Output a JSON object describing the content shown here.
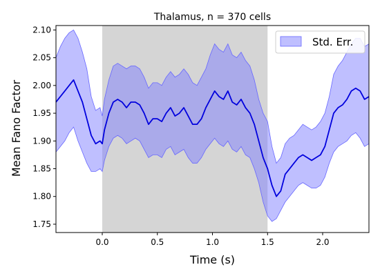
{
  "chart_data": {
    "type": "line",
    "title": "Thalamus, n = 370 cells",
    "xlabel": "Time (s)",
    "ylabel": "Mean Fano Factor",
    "xlim": [
      -0.42,
      2.42
    ],
    "ylim": [
      1.735,
      2.108
    ],
    "xticks": [
      0.0,
      0.5,
      1.0,
      1.5,
      2.0
    ],
    "xtick_labels": [
      "0.0",
      "0.5",
      "1.0",
      "1.5",
      "2.0"
    ],
    "yticks": [
      1.75,
      1.8,
      1.85,
      1.9,
      1.95,
      2.0,
      2.05,
      2.1
    ],
    "ytick_labels": [
      "1.75",
      "1.80",
      "1.85",
      "1.90",
      "1.95",
      "2.00",
      "2.05",
      "2.10"
    ],
    "shaded_interval": [
      0.0,
      1.5
    ],
    "grid": false,
    "legend": {
      "position": "top-right",
      "entries": [
        "Std. Err."
      ]
    },
    "colors": {
      "line": "#0000dd",
      "band": "#8080ff",
      "shade": "#b3b3b3"
    },
    "series": [
      {
        "name": "",
        "x": [
          -0.42,
          -0.38,
          -0.34,
          -0.3,
          -0.26,
          -0.22,
          -0.18,
          -0.14,
          -0.1,
          -0.06,
          -0.02,
          0.0,
          0.02,
          0.06,
          0.1,
          0.14,
          0.18,
          0.22,
          0.26,
          0.3,
          0.34,
          0.38,
          0.42,
          0.46,
          0.5,
          0.54,
          0.58,
          0.62,
          0.66,
          0.7,
          0.74,
          0.78,
          0.82,
          0.86,
          0.9,
          0.94,
          0.98,
          1.02,
          1.06,
          1.1,
          1.14,
          1.18,
          1.22,
          1.26,
          1.3,
          1.34,
          1.38,
          1.42,
          1.46,
          1.5,
          1.54,
          1.58,
          1.62,
          1.66,
          1.7,
          1.74,
          1.78,
          1.82,
          1.86,
          1.9,
          1.94,
          1.98,
          2.02,
          2.06,
          2.1,
          2.14,
          2.18,
          2.22,
          2.26,
          2.3,
          2.34,
          2.38,
          2.42
        ],
        "y": [
          1.97,
          1.98,
          1.99,
          2.0,
          2.01,
          1.99,
          1.97,
          1.94,
          1.91,
          1.895,
          1.9,
          1.895,
          1.92,
          1.95,
          1.97,
          1.975,
          1.97,
          1.96,
          1.97,
          1.97,
          1.965,
          1.95,
          1.93,
          1.94,
          1.94,
          1.935,
          1.95,
          1.96,
          1.945,
          1.95,
          1.96,
          1.945,
          1.93,
          1.93,
          1.94,
          1.96,
          1.975,
          1.99,
          1.98,
          1.975,
          1.99,
          1.97,
          1.965,
          1.975,
          1.96,
          1.95,
          1.93,
          1.9,
          1.87,
          1.85,
          1.82,
          1.8,
          1.81,
          1.84,
          1.85,
          1.86,
          1.87,
          1.875,
          1.87,
          1.865,
          1.87,
          1.875,
          1.89,
          1.92,
          1.95,
          1.96,
          1.965,
          1.975,
          1.99,
          1.995,
          1.99,
          1.975,
          1.98
        ],
        "lower": [
          1.88,
          1.89,
          1.9,
          1.915,
          1.925,
          1.9,
          1.88,
          1.86,
          1.845,
          1.845,
          1.85,
          1.845,
          1.865,
          1.89,
          1.905,
          1.91,
          1.905,
          1.895,
          1.9,
          1.905,
          1.9,
          1.885,
          1.87,
          1.875,
          1.875,
          1.87,
          1.885,
          1.89,
          1.875,
          1.88,
          1.885,
          1.87,
          1.86,
          1.86,
          1.87,
          1.885,
          1.895,
          1.905,
          1.895,
          1.89,
          1.9,
          1.885,
          1.88,
          1.89,
          1.875,
          1.87,
          1.85,
          1.825,
          1.79,
          1.765,
          1.755,
          1.76,
          1.775,
          1.79,
          1.8,
          1.81,
          1.82,
          1.825,
          1.82,
          1.815,
          1.815,
          1.82,
          1.835,
          1.86,
          1.88,
          1.89,
          1.895,
          1.9,
          1.91,
          1.915,
          1.905,
          1.89,
          1.895
        ],
        "upper": [
          2.05,
          2.07,
          2.085,
          2.095,
          2.1,
          2.085,
          2.06,
          2.03,
          1.98,
          1.955,
          1.96,
          1.945,
          1.975,
          2.01,
          2.035,
          2.04,
          2.035,
          2.03,
          2.035,
          2.035,
          2.03,
          2.015,
          1.995,
          2.005,
          2.005,
          2.0,
          2.015,
          2.025,
          2.015,
          2.02,
          2.03,
          2.02,
          2.005,
          2.0,
          2.015,
          2.03,
          2.055,
          2.075,
          2.065,
          2.06,
          2.075,
          2.055,
          2.05,
          2.06,
          2.045,
          2.035,
          2.01,
          1.975,
          1.95,
          1.935,
          1.89,
          1.86,
          1.87,
          1.895,
          1.905,
          1.91,
          1.92,
          1.93,
          1.925,
          1.92,
          1.925,
          1.935,
          1.95,
          1.98,
          2.02,
          2.035,
          2.045,
          2.06,
          2.075,
          2.085,
          2.085,
          2.07,
          2.075
        ]
      }
    ]
  }
}
